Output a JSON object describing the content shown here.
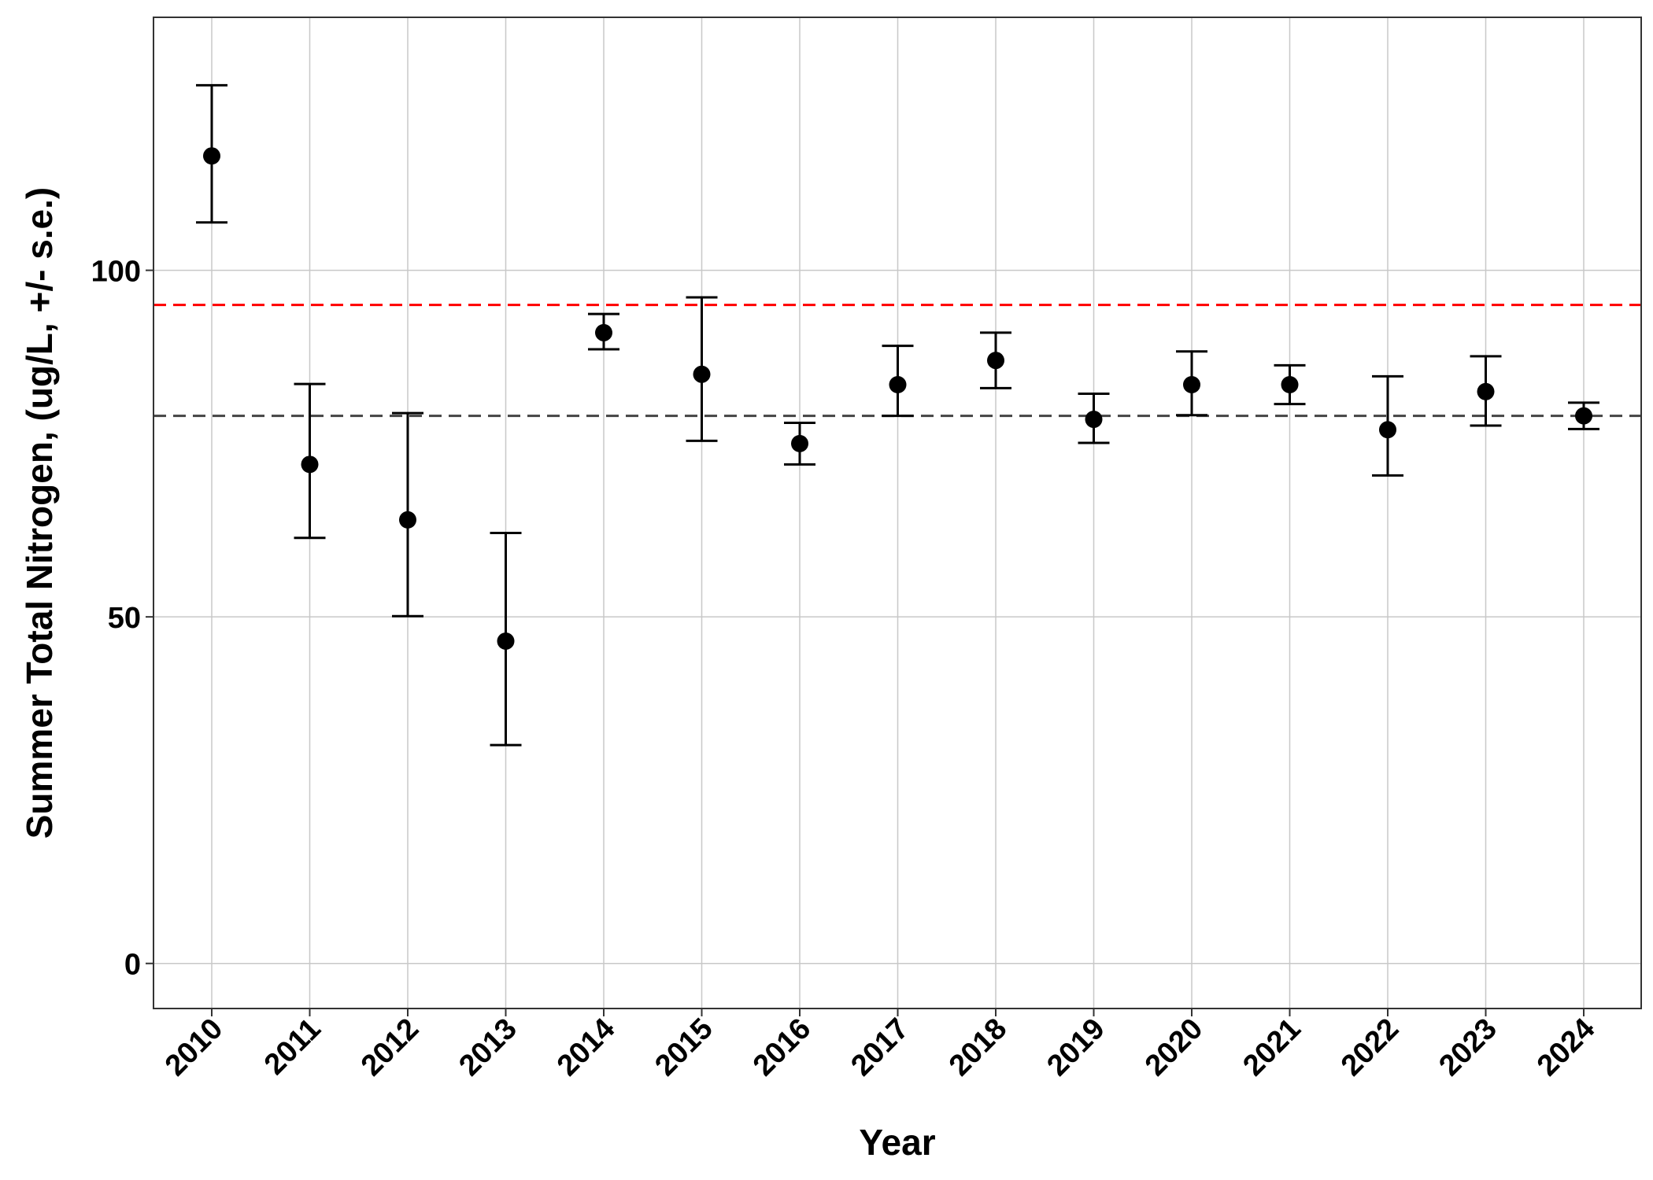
{
  "chart_data": {
    "type": "scatter",
    "xlabel": "Year",
    "ylabel": "Summer Total Nitrogen, (ug/L, +/- s.e.)",
    "ylim": [
      -6.5,
      136.5
    ],
    "y_ticks": [
      0,
      50,
      100
    ],
    "y_tick_labels": [
      "0",
      "50",
      "100"
    ],
    "categories": [
      "2010",
      "2011",
      "2012",
      "2013",
      "2014",
      "2015",
      "2016",
      "2017",
      "2018",
      "2019",
      "2020",
      "2021",
      "2022",
      "2023",
      "2024"
    ],
    "series": [
      {
        "values": [
          116.5,
          72.0,
          64.0,
          46.5,
          91.0,
          85.0,
          75.0,
          83.5,
          87.0,
          78.5,
          83.5,
          83.5,
          77.0,
          82.5,
          79.0
        ],
        "error_lower": [
          106.9,
          61.4,
          50.1,
          31.5,
          88.6,
          75.4,
          72.0,
          79.0,
          83.0,
          75.1,
          79.1,
          80.7,
          70.4,
          77.6,
          77.1
        ],
        "error_upper": [
          126.7,
          83.6,
          79.4,
          62.1,
          93.7,
          96.1,
          78.0,
          89.1,
          91.0,
          82.2,
          88.3,
          86.3,
          84.7,
          87.6,
          80.9
        ],
        "color": "#000000"
      }
    ],
    "reference_lines": [
      {
        "y": 95.0,
        "color": "#ff0000",
        "style": "dashed"
      },
      {
        "y": 79.0,
        "color": "#444444",
        "style": "dashed"
      }
    ],
    "grid": true,
    "grid_color": "#c8c8c8",
    "legend": "none"
  }
}
